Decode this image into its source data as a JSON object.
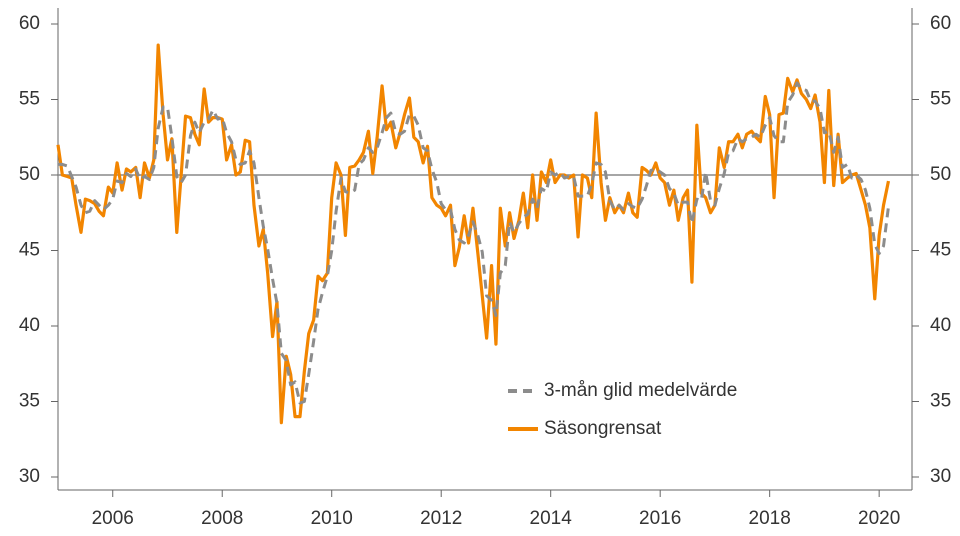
{
  "chart_data": {
    "type": "line",
    "x": [
      2005,
      2005.08,
      2005.17,
      2005.25,
      2005.33,
      2005.42,
      2005.5,
      2005.58,
      2005.67,
      2005.75,
      2005.83,
      2005.92,
      2006,
      2006.08,
      2006.17,
      2006.25,
      2006.33,
      2006.42,
      2006.5,
      2006.58,
      2006.67,
      2006.75,
      2006.83,
      2006.92,
      2007,
      2007.08,
      2007.17,
      2007.25,
      2007.33,
      2007.42,
      2007.5,
      2007.58,
      2007.67,
      2007.75,
      2007.83,
      2007.92,
      2008,
      2008.08,
      2008.17,
      2008.25,
      2008.33,
      2008.42,
      2008.5,
      2008.58,
      2008.67,
      2008.75,
      2008.83,
      2008.92,
      2009,
      2009.08,
      2009.17,
      2009.25,
      2009.33,
      2009.42,
      2009.5,
      2009.58,
      2009.67,
      2009.75,
      2009.83,
      2009.92,
      2010,
      2010.08,
      2010.17,
      2010.25,
      2010.33,
      2010.42,
      2010.5,
      2010.58,
      2010.67,
      2010.75,
      2010.83,
      2010.92,
      2011,
      2011.08,
      2011.17,
      2011.25,
      2011.33,
      2011.42,
      2011.5,
      2011.58,
      2011.67,
      2011.75,
      2011.83,
      2011.92,
      2012,
      2012.08,
      2012.17,
      2012.25,
      2012.33,
      2012.42,
      2012.5,
      2012.58,
      2012.67,
      2012.75,
      2012.83,
      2012.92,
      2013,
      2013.08,
      2013.17,
      2013.25,
      2013.33,
      2013.42,
      2013.5,
      2013.58,
      2013.67,
      2013.75,
      2013.83,
      2013.92,
      2014,
      2014.08,
      2014.17,
      2014.25,
      2014.33,
      2014.42,
      2014.5,
      2014.58,
      2014.67,
      2014.75,
      2014.83,
      2014.92,
      2015,
      2015.08,
      2015.17,
      2015.25,
      2015.33,
      2015.42,
      2015.5,
      2015.58,
      2015.67,
      2015.75,
      2015.83,
      2015.92,
      2016,
      2016.08,
      2016.17,
      2016.25,
      2016.33,
      2016.42,
      2016.5,
      2016.58,
      2016.67,
      2016.75,
      2016.83,
      2016.92,
      2017,
      2017.08,
      2017.17,
      2017.25,
      2017.33,
      2017.42,
      2017.5,
      2017.58,
      2017.67,
      2017.75,
      2017.83,
      2017.92,
      2018,
      2018.08,
      2018.17,
      2018.25,
      2018.33,
      2018.42,
      2018.5,
      2018.58,
      2018.67,
      2018.75,
      2018.83,
      2018.92,
      2019,
      2019.08,
      2019.17,
      2019.25,
      2019.33,
      2019.42,
      2019.5,
      2019.58,
      2019.67,
      2019.75,
      2019.83,
      2019.92,
      2020,
      2020.08,
      2020.17
    ],
    "series": [
      {
        "name": "3-mån glid medelvärde",
        "color": "#8c8c8c",
        "dashed": true,
        "values": [
          50.7,
          50.7,
          50.6,
          49.9,
          49.2,
          48.0,
          47.5,
          47.6,
          48.3,
          48.0,
          47.7,
          48.0,
          48.4,
          49.6,
          49.5,
          50.1,
          49.9,
          50.4,
          49.7,
          49.9,
          49.7,
          50.5,
          53.1,
          54.5,
          54.5,
          52.5,
          49.9,
          49.5,
          50.0,
          52.6,
          53.5,
          52.8,
          53.5,
          53.7,
          54.3,
          53.7,
          53.8,
          52.8,
          52.2,
          51.0,
          50.7,
          50.8,
          51.6,
          50.8,
          48.5,
          46.6,
          45.1,
          43.1,
          41.5,
          38.2,
          37.7,
          36.1,
          36.3,
          34.9,
          35.0,
          36.8,
          39.0,
          41.1,
          42.2,
          43.3,
          45.0,
          47.6,
          49.8,
          48.9,
          48.8,
          49.0,
          50.7,
          51.0,
          51.8,
          51.5,
          51.8,
          52.8,
          53.8,
          54.1,
          52.8,
          52.7,
          52.9,
          54.0,
          53.9,
          53.3,
          51.8,
          51.6,
          50.4,
          49.5,
          48.1,
          47.7,
          47.7,
          46.4,
          45.7,
          45.5,
          46.0,
          46.9,
          46.0,
          44.9,
          42.0,
          41.7,
          40.7,
          43.5,
          44.0,
          46.9,
          46.2,
          46.8,
          47.2,
          47.4,
          48.4,
          47.8,
          49.1,
          48.9,
          50.2,
          50.0,
          50.2,
          49.8,
          49.9,
          49.9,
          48.6,
          48.6,
          48.6,
          49.4,
          50.8,
          50.7,
          50.2,
          48.3,
          47.7,
          48.0,
          47.7,
          48.1,
          47.9,
          47.8,
          48.4,
          49.3,
          50.3,
          50.4,
          50.2,
          50.0,
          49.1,
          48.8,
          48.0,
          48.2,
          48.2,
          46.8,
          48.4,
          48.3,
          50.2,
          48.3,
          48.0,
          49.1,
          50.1,
          51.5,
          51.6,
          52.4,
          52.2,
          52.4,
          52.5,
          52.7,
          52.5,
          53.3,
          53.8,
          52.6,
          52.2,
          52.2,
          54.8,
          55.3,
          56.1,
          55.7,
          55.6,
          54.9,
          54.9,
          54.4,
          52.8,
          52.9,
          51.5,
          52.5,
          50.5,
          50.7,
          49.8,
          50.0,
          49.7,
          49.0,
          47.8,
          45.4,
          44.8,
          45.3,
          47.9
        ]
      },
      {
        "name": "Säsongrensat",
        "color": "#f28500",
        "dashed": false,
        "values": [
          52,
          50,
          49.9,
          49.8,
          48,
          46.2,
          48.4,
          48.3,
          48.1,
          47.6,
          47.3,
          49.2,
          48.8,
          50.8,
          49,
          50.4,
          50.2,
          50.5,
          48.5,
          50.8,
          49.8,
          51,
          58.6,
          54,
          51,
          52.4,
          46.2,
          50,
          53.9,
          53.8,
          52.7,
          52,
          55.7,
          53.5,
          53.8,
          53.8,
          53.7,
          51,
          52,
          50,
          50.2,
          52.3,
          52.2,
          48,
          45.3,
          46.4,
          43.5,
          39.3,
          41.6,
          33.6,
          38,
          36.8,
          34,
          34,
          37,
          39.5,
          40.4,
          43.3,
          43,
          43.5,
          48.5,
          50.8,
          50,
          46,
          50.5,
          50.6,
          51,
          51.5,
          52.9,
          50.1,
          52.5,
          55.9,
          53,
          53.5,
          51.8,
          52.8,
          54,
          55.1,
          52.5,
          52.2,
          50.8,
          51.9,
          48.5,
          48,
          47.8,
          47.3,
          48,
          44,
          45.2,
          47.3,
          45.5,
          47.8,
          44.8,
          42,
          39.2,
          44,
          38.8,
          47.8,
          45.3,
          47.5,
          45.8,
          47,
          48.8,
          46.5,
          50,
          47,
          50.2,
          49.5,
          51,
          49.5,
          50,
          50,
          49.8,
          50,
          45.9,
          50,
          49.8,
          48.5,
          54.1,
          49.5,
          47,
          48.5,
          47.5,
          48,
          47.5,
          48.8,
          47.5,
          47.2,
          50.5,
          50.3,
          50,
          50.8,
          49.8,
          49.5,
          48,
          49,
          47,
          48.5,
          49,
          42.9,
          53.3,
          48.8,
          48.5,
          47.5,
          48,
          51.8,
          50.5,
          52.2,
          52.2,
          52.7,
          51.8,
          52.7,
          52.9,
          52.5,
          52.2,
          55.2,
          54,
          48.5,
          54,
          54.1,
          56.4,
          55.5,
          56.3,
          55.4,
          55,
          54.4,
          55.3,
          53.5,
          49.5,
          55.6,
          49.3,
          52.7,
          49.5,
          49.8,
          50,
          50.1,
          49,
          48,
          46.5,
          41.8,
          46,
          48,
          49.6
        ]
      }
    ],
    "xlim": [
      2005,
      2020.6
    ],
    "xticks": [
      2006,
      2008,
      2010,
      2012,
      2014,
      2016,
      2018,
      2020
    ],
    "ylim": [
      30,
      60
    ],
    "yticks": [
      30,
      35,
      40,
      45,
      50,
      55,
      60
    ],
    "y2lim": [
      30,
      60
    ],
    "y2ticks": [
      30,
      35,
      40,
      45,
      50,
      55,
      60
    ],
    "hline": 50,
    "grid": false,
    "legend": "lower right"
  }
}
